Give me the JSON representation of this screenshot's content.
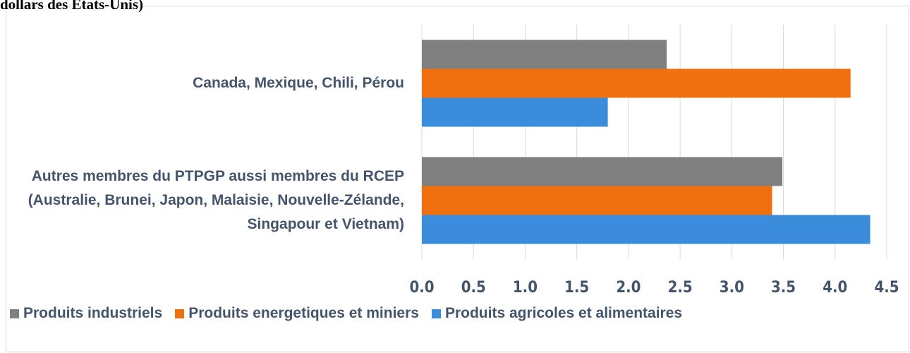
{
  "chart_data": {
    "type": "hbar",
    "title": "dollars des États-Unis)",
    "categories": [
      "Canada, Mexique, Chili, Pérou",
      "Autres membres du PTPGP aussi membres du RCEP (Australie, Brunei, Japon, Malaisie, Nouvelle-Zélande, Singapour et Vietnam)"
    ],
    "series": [
      {
        "name": "Produits industriels",
        "color": "#808080",
        "values": [
          2.37,
          3.49
        ]
      },
      {
        "name": "Produits energetiques et miniers",
        "color": "#f0700f",
        "values": [
          4.15,
          3.39
        ]
      },
      {
        "name": "Produits agricoles et alimentaires",
        "color": "#3b8ddc",
        "values": [
          1.8,
          4.34
        ]
      }
    ],
    "xlim": [
      0,
      4.5
    ],
    "xticks": [
      {
        "value": 0,
        "label": "0.0"
      },
      0.5,
      {
        "value": 1,
        "label": "1.0"
      },
      1.5,
      {
        "value": 2,
        "label": "2.0"
      },
      2.5,
      {
        "value": 3,
        "label": "3.0"
      },
      3.5,
      {
        "value": 4,
        "label": "4.0"
      },
      4.5
    ],
    "grid": true,
    "legend": "bottom"
  }
}
